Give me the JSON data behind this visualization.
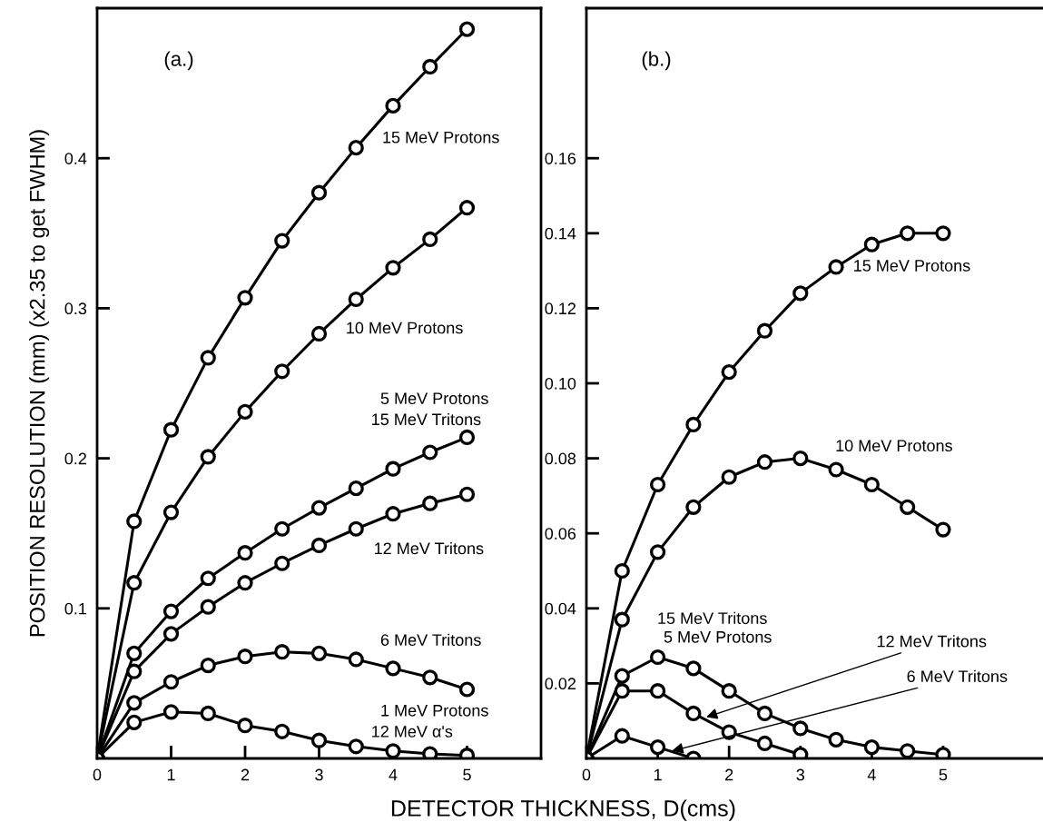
{
  "chart_data": [
    {
      "type": "line",
      "title": "(a.)",
      "xlabel": "DETECTOR THICKNESS, D(cms)",
      "ylabel": "POSITION RESOLUTION (mm) (x2.35 to get FWHM)",
      "xlim": [
        0,
        6
      ],
      "xticks": [
        0,
        1,
        2,
        3,
        4,
        5
      ],
      "ylim": [
        0,
        0.5
      ],
      "yticks": [
        0.1,
        0.2,
        0.3,
        0.4
      ],
      "marker": "circle",
      "line_style": "solid",
      "series": [
        {
          "color": "#000000",
          "x": [
            0,
            0.5,
            1,
            1.5,
            2,
            2.5,
            3,
            3.5,
            4,
            4.5,
            5
          ],
          "values": [
            0,
            0.158,
            0.219,
            0.267,
            0.307,
            0.345,
            0.377,
            0.407,
            0.435,
            0.461,
            0.486
          ]
        },
        {
          "color": "#000000",
          "x": [
            0,
            0.5,
            1,
            1.5,
            2,
            2.5,
            3,
            3.5,
            4,
            4.5,
            5
          ],
          "values": [
            0,
            0.117,
            0.164,
            0.201,
            0.231,
            0.258,
            0.283,
            0.306,
            0.327,
            0.346,
            0.367
          ]
        },
        {
          "color": "#000000",
          "x": [
            0,
            0.5,
            1,
            1.5,
            2,
            2.5,
            3,
            3.5,
            4,
            4.5,
            5
          ],
          "values": [
            0,
            0.07,
            0.098,
            0.12,
            0.137,
            0.153,
            0.167,
            0.18,
            0.193,
            0.204,
            0.214
          ]
        },
        {
          "color": "#000000",
          "x": [
            0,
            0.5,
            1,
            1.5,
            2,
            2.5,
            3,
            3.5,
            4,
            4.5,
            5
          ],
          "values": [
            0,
            0.058,
            0.083,
            0.101,
            0.117,
            0.13,
            0.142,
            0.153,
            0.163,
            0.17,
            0.176
          ]
        },
        {
          "color": "#000000",
          "x": [
            0,
            0.5,
            1,
            1.5,
            2,
            2.5,
            3,
            3.5,
            4,
            4.5,
            5
          ],
          "values": [
            0,
            0.037,
            0.051,
            0.062,
            0.068,
            0.071,
            0.07,
            0.066,
            0.06,
            0.054,
            0.046
          ]
        },
        {
          "color": "#000000",
          "x": [
            0,
            0.5,
            1,
            1.5,
            2,
            2.5,
            3,
            3.5,
            4,
            4.5,
            5
          ],
          "values": [
            0,
            0.024,
            0.031,
            0.03,
            0.022,
            0.018,
            0.012,
            0.008,
            0.005,
            0.003,
            0.002
          ]
        }
      ],
      "annotations": [
        "15 MeV Protons",
        "10 MeV Protons",
        "5 MeV Protons",
        "15 MeV Tritons",
        "12 MeV Tritons",
        "6 MeV Tritons",
        "1 MeV Protons",
        "12 MeV α's"
      ]
    },
    {
      "type": "line",
      "title": "(b.)",
      "xlim": [
        0,
        6.4
      ],
      "xticks": [
        0,
        1,
        2,
        3,
        4,
        5
      ],
      "ylim": [
        0,
        0.2
      ],
      "yticks": [
        0.02,
        0.04,
        0.06,
        0.08,
        {
          "value": 0.1,
          "label": "0.10"
        },
        0.12,
        0.14,
        0.16
      ],
      "marker": "circle",
      "line_style": "solid",
      "series": [
        {
          "color": "#000000",
          "x": [
            0,
            0.5,
            1,
            1.5,
            2,
            2.5,
            3,
            3.5,
            4,
            4.5,
            5
          ],
          "values": [
            0,
            0.05,
            0.073,
            0.089,
            0.103,
            0.114,
            0.124,
            0.131,
            0.137,
            0.14,
            0.14
          ]
        },
        {
          "color": "#000000",
          "x": [
            0,
            0.5,
            1,
            1.5,
            2,
            2.5,
            3,
            3.5,
            4,
            4.5,
            5
          ],
          "values": [
            0,
            0.037,
            0.055,
            0.067,
            0.075,
            0.079,
            0.08,
            0.077,
            0.073,
            0.067,
            0.061
          ]
        },
        {
          "color": "#000000",
          "x": [
            0,
            0.5,
            1,
            1.5,
            2,
            2.5,
            3,
            3.5,
            4,
            4.5,
            5
          ],
          "values": [
            0,
            0.022,
            0.027,
            0.024,
            0.018,
            0.012,
            0.008,
            0.005,
            0.003,
            0.002,
            0.001
          ]
        },
        {
          "color": "#000000",
          "x": [
            0,
            0.5,
            1,
            1.5,
            2,
            2.5,
            3
          ],
          "values": [
            0,
            0.018,
            0.018,
            0.012,
            0.007,
            0.004,
            0.001
          ]
        },
        {
          "color": "#000000",
          "x": [
            0,
            0.5,
            1,
            1.5
          ],
          "values": [
            0,
            0.006,
            0.003,
            0.0
          ]
        }
      ],
      "annotations": [
        "15 MeV Protons",
        "10 MeV Protons",
        "15 MeV Tritons",
        "5 MeV Protons",
        {
          "text": "12 MeV Tritons",
          "x": 1.68,
          "y": 0.011
        },
        {
          "text": "6 MeV Tritons",
          "x": 1.2,
          "y": 0.002
        }
      ]
    }
  ]
}
